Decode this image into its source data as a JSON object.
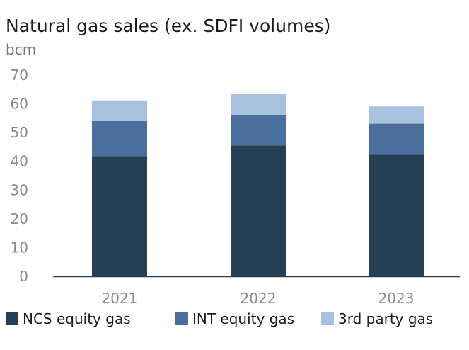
{
  "chart_data": {
    "type": "bar",
    "stacked": true,
    "title": "Natural gas sales (ex. SDFI volumes)",
    "ylabel": "bcm",
    "xlabel": "",
    "ylim": [
      0,
      70
    ],
    "yticks": [
      0,
      10,
      20,
      30,
      40,
      50,
      60,
      70
    ],
    "categories": [
      "2021",
      "2022",
      "2023"
    ],
    "series": [
      {
        "name": "NCS equity gas",
        "color": "#253f55",
        "values": [
          41.8,
          45.5,
          42.3
        ]
      },
      {
        "name": "INT equity gas",
        "color": "#4a6f9c",
        "values": [
          12.2,
          10.7,
          10.8
        ]
      },
      {
        "name": "3rd party gas",
        "color": "#a8c2dd",
        "values": [
          7.2,
          7.2,
          6.0
        ]
      }
    ],
    "legend_position": "bottom"
  }
}
